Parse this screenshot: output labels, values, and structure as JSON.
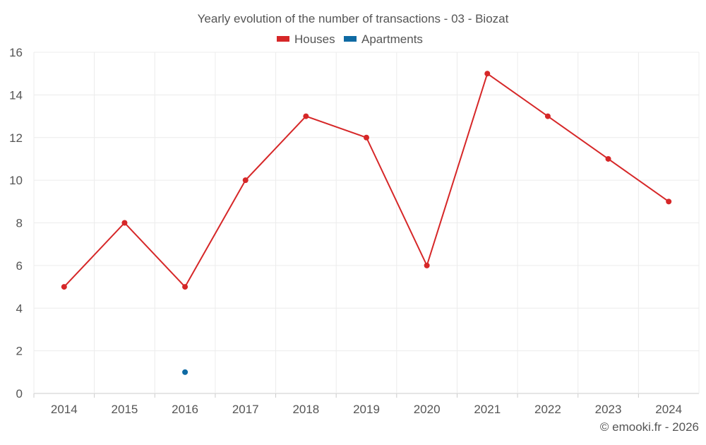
{
  "chart_data": {
    "type": "line",
    "title": "Yearly evolution of the number of transactions - 03 - Biozat",
    "categories": [
      "2014",
      "2015",
      "2016",
      "2017",
      "2018",
      "2019",
      "2020",
      "2021",
      "2022",
      "2023",
      "2024"
    ],
    "series": [
      {
        "name": "Houses",
        "color": "#d62728",
        "values": [
          5,
          8,
          5,
          10,
          13,
          12,
          6,
          15,
          13,
          11,
          9
        ]
      },
      {
        "name": "Apartments",
        "color": "#0f6aa3",
        "values": [
          null,
          null,
          1,
          null,
          null,
          null,
          null,
          null,
          null,
          null,
          null
        ]
      }
    ],
    "yticks": [
      "0",
      "2",
      "4",
      "6",
      "8",
      "10",
      "12",
      "14",
      "16"
    ],
    "ylim": [
      0,
      16
    ],
    "grid": true,
    "legend": "top-center",
    "xlabel": "",
    "ylabel": ""
  },
  "credit": "© emooki.fr - 2026"
}
